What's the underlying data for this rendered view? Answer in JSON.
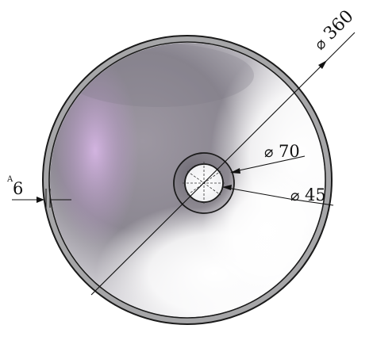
{
  "figure": {
    "dimensions": {
      "outer_diameter": {
        "symbol": "⌀",
        "value": "360"
      },
      "hole_outer_diameter": {
        "symbol": "⌀",
        "value": "70"
      },
      "hole_inner_diameter": {
        "symbol": "⌀",
        "value": "45"
      },
      "wall_thickness": {
        "prefix": "A",
        "value": "6"
      }
    },
    "colors": {
      "outline": "#1a1a1a",
      "rim": "#9a9a9a",
      "shade_dark": "#5e5a66",
      "shade_purple": "#b99cc8",
      "highlight": "#ffffff"
    }
  }
}
